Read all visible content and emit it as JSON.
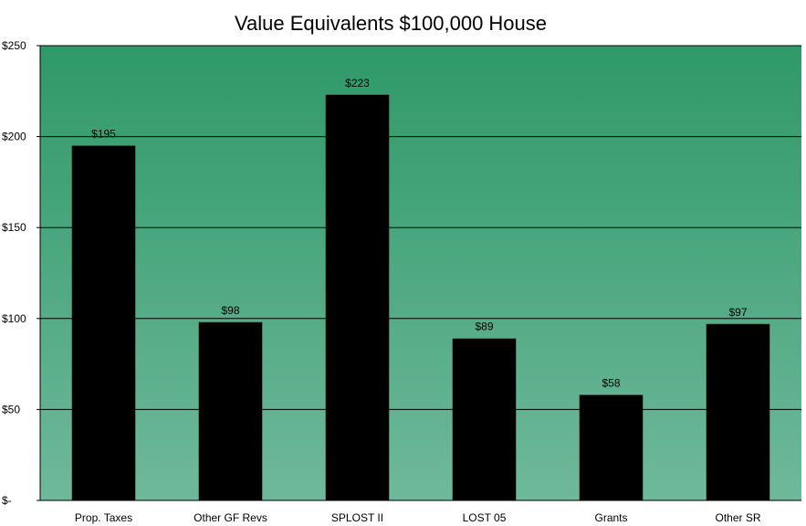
{
  "chart_data": {
    "type": "bar",
    "title": "Value Equivalents $100,000 House",
    "xlabel": "",
    "ylabel": "",
    "categories": [
      "Prop. Taxes",
      "Other GF Revs",
      "SPLOST II",
      "LOST 05",
      "Grants",
      "Other SR"
    ],
    "values": [
      195,
      98,
      223,
      89,
      58,
      97
    ],
    "data_labels": [
      "$195",
      "$98",
      "$223",
      "$89",
      "$58",
      "$97"
    ],
    "ylim": [
      0,
      250
    ],
    "yticks": [
      0,
      50,
      100,
      150,
      200,
      250
    ],
    "ytick_labels": [
      "$-",
      "$50",
      "$100",
      "$150",
      "$200",
      "$250"
    ],
    "grid": true,
    "legend": "none",
    "colors": {
      "bar": "#000000",
      "plot_top": "#2f9968",
      "plot_bottom": "#6fb99b",
      "gridline": "#000000"
    }
  }
}
